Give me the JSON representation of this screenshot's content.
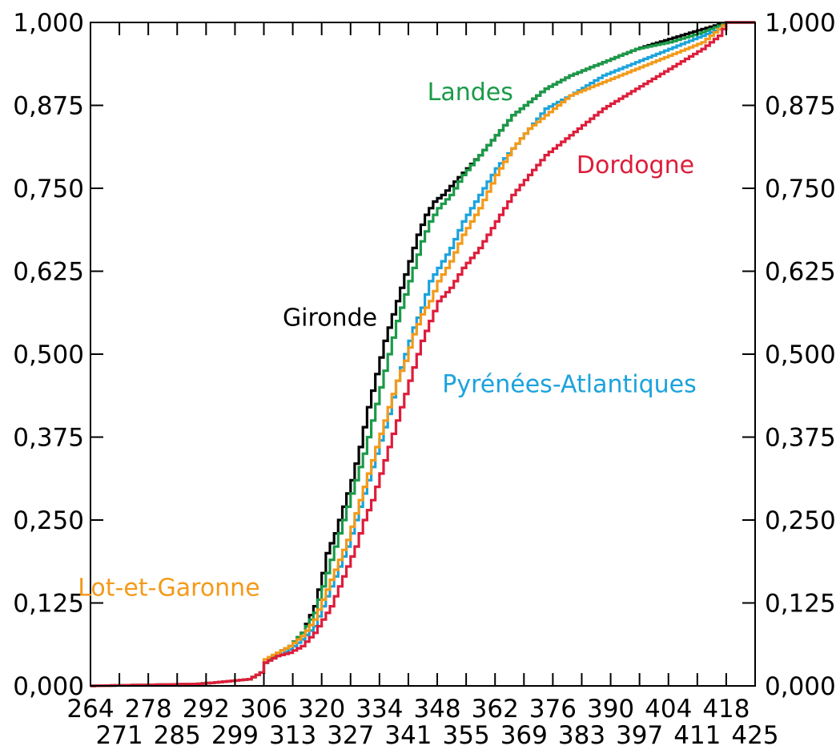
{
  "chart_data": {
    "type": "line",
    "title": "",
    "xlabel": "",
    "ylabel": "",
    "xlim": [
      264,
      425
    ],
    "ylim": [
      0,
      1
    ],
    "grid": false,
    "legend": "inline labels next to curves",
    "x_ticks": [
      264,
      271,
      278,
      285,
      292,
      299,
      306,
      313,
      320,
      327,
      334,
      341,
      348,
      355,
      362,
      369,
      376,
      383,
      390,
      397,
      404,
      411,
      418,
      425
    ],
    "x_tick_labels_top_row": [
      "264",
      "278",
      "292",
      "306",
      "320",
      "334",
      "348",
      "362",
      "376",
      "390",
      "404",
      "418"
    ],
    "x_tick_labels_bottom_row": [
      "271",
      "285",
      "299",
      "313",
      "327",
      "341",
      "355",
      "369",
      "383",
      "397",
      "411",
      "425"
    ],
    "y_ticks": [
      "0,000",
      "0,125",
      "0,250",
      "0,375",
      "0,500",
      "0,625",
      "0,750",
      "0,875",
      "1,000"
    ],
    "y_tick_values": [
      0,
      0.125,
      0.25,
      0.375,
      0.5,
      0.625,
      0.75,
      0.875,
      1
    ],
    "series": [
      {
        "name": "Gironde",
        "color": "#000000",
        "x": [
          264,
          290,
          302,
          305,
          306,
          309,
          312,
          315,
          318,
          320,
          321,
          323,
          325,
          327,
          329,
          331,
          333,
          335,
          337,
          339,
          341,
          343,
          345,
          347,
          349,
          352,
          355,
          358,
          362,
          366,
          370,
          374,
          380,
          388,
          396,
          404,
          412,
          416,
          418,
          425
        ],
        "y": [
          0,
          0.003,
          0.01,
          0.02,
          0.035,
          0.05,
          0.06,
          0.08,
          0.12,
          0.17,
          0.2,
          0.23,
          0.27,
          0.31,
          0.36,
          0.42,
          0.47,
          0.52,
          0.56,
          0.6,
          0.64,
          0.68,
          0.71,
          0.73,
          0.74,
          0.76,
          0.78,
          0.8,
          0.83,
          0.86,
          0.88,
          0.9,
          0.92,
          0.94,
          0.96,
          0.975,
          0.99,
          0.997,
          1,
          1
        ]
      },
      {
        "name": "Landes",
        "color": "#1a9a48",
        "x": [
          264,
          290,
          302,
          305,
          306,
          309,
          312,
          315,
          318,
          320,
          322,
          324,
          326,
          328,
          330,
          332,
          334,
          336,
          338,
          340,
          342,
          344,
          346,
          348,
          351,
          354,
          358,
          362,
          366,
          370,
          374,
          380,
          388,
          396,
          404,
          412,
          416,
          418,
          425
        ],
        "y": [
          0,
          0.003,
          0.01,
          0.02,
          0.035,
          0.05,
          0.06,
          0.08,
          0.11,
          0.15,
          0.19,
          0.23,
          0.27,
          0.31,
          0.35,
          0.4,
          0.45,
          0.5,
          0.55,
          0.59,
          0.63,
          0.67,
          0.7,
          0.72,
          0.74,
          0.77,
          0.8,
          0.83,
          0.86,
          0.88,
          0.9,
          0.92,
          0.94,
          0.96,
          0.97,
          0.985,
          0.995,
          1,
          1
        ]
      },
      {
        "name": "Pyrénées-Atlantiques",
        "color": "#1ba3dc",
        "x": [
          264,
          290,
          302,
          305,
          306,
          309,
          312,
          315,
          318,
          320,
          322,
          324,
          326,
          328,
          330,
          332,
          334,
          336,
          338,
          340,
          342,
          344,
          346,
          348,
          351,
          354,
          358,
          362,
          366,
          370,
          374,
          380,
          388,
          396,
          404,
          412,
          416,
          418,
          425
        ],
        "y": [
          0,
          0.003,
          0.01,
          0.02,
          0.035,
          0.045,
          0.055,
          0.07,
          0.09,
          0.12,
          0.15,
          0.18,
          0.21,
          0.25,
          0.29,
          0.33,
          0.37,
          0.41,
          0.46,
          0.5,
          0.54,
          0.57,
          0.61,
          0.63,
          0.66,
          0.7,
          0.74,
          0.78,
          0.81,
          0.84,
          0.87,
          0.89,
          0.92,
          0.94,
          0.96,
          0.98,
          0.99,
          1,
          1
        ]
      },
      {
        "name": "Lot-et-Garonne",
        "color": "#f39a1a",
        "x": [
          264,
          290,
          302,
          305,
          306,
          309,
          312,
          315,
          318,
          320,
          322,
          324,
          326,
          328,
          330,
          332,
          334,
          336,
          338,
          340,
          342,
          344,
          346,
          348,
          351,
          354,
          358,
          362,
          366,
          370,
          374,
          380,
          388,
          396,
          404,
          412,
          416,
          418,
          425
        ],
        "y": [
          0,
          0.003,
          0.01,
          0.02,
          0.04,
          0.05,
          0.06,
          0.075,
          0.1,
          0.13,
          0.16,
          0.19,
          0.22,
          0.26,
          0.3,
          0.34,
          0.38,
          0.42,
          0.46,
          0.49,
          0.53,
          0.56,
          0.58,
          0.61,
          0.64,
          0.68,
          0.72,
          0.77,
          0.81,
          0.84,
          0.86,
          0.89,
          0.91,
          0.93,
          0.95,
          0.97,
          0.99,
          1,
          1
        ]
      },
      {
        "name": "Dordogne",
        "color": "#dd1d3a",
        "x": [
          264,
          290,
          302,
          305,
          306,
          309,
          312,
          315,
          318,
          320,
          322,
          324,
          326,
          328,
          330,
          332,
          334,
          336,
          338,
          340,
          342,
          344,
          346,
          348,
          351,
          354,
          358,
          362,
          366,
          370,
          374,
          380,
          388,
          396,
          404,
          412,
          416,
          418,
          425
        ],
        "y": [
          0,
          0.003,
          0.01,
          0.02,
          0.035,
          0.045,
          0.05,
          0.06,
          0.08,
          0.1,
          0.12,
          0.15,
          0.18,
          0.21,
          0.25,
          0.28,
          0.32,
          0.36,
          0.4,
          0.44,
          0.48,
          0.52,
          0.55,
          0.58,
          0.6,
          0.63,
          0.66,
          0.7,
          0.74,
          0.77,
          0.8,
          0.83,
          0.87,
          0.9,
          0.93,
          0.96,
          0.98,
          1,
          1
        ]
      }
    ],
    "annotations": [
      {
        "text": "Landes",
        "color": "#1a9a48",
        "anchor_x": 356,
        "anchor_y": 0.895
      },
      {
        "text": "Dordogne",
        "color": "#dd1d3a",
        "anchor_x": 396,
        "anchor_y": 0.785
      },
      {
        "text": "Gironde",
        "color": "#000000",
        "anchor_x": 322,
        "anchor_y": 0.555
      },
      {
        "text": "Pyrénées-Atlantiques",
        "color": "#1ba3dc",
        "anchor_x": 380,
        "anchor_y": 0.455
      },
      {
        "text": "Lot-et-Garonne",
        "color": "#f39a1a",
        "anchor_x": 283,
        "anchor_y": 0.148
      }
    ]
  }
}
